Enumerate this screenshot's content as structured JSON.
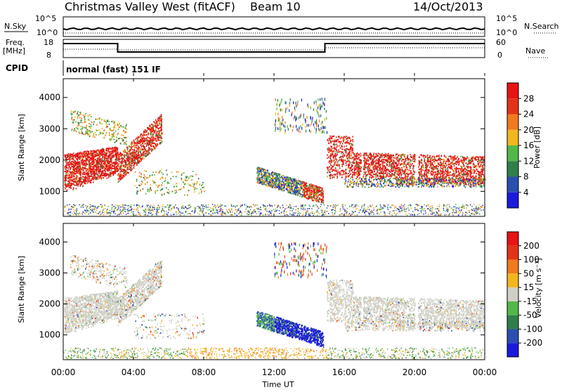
{
  "header": {
    "station": "Christmas Valley West (fitACF)",
    "beam": "Beam 10",
    "date": "14/Oct/2013"
  },
  "status_panel": {
    "nsky_label": "N.Sky",
    "nsearch_label": "N.Search",
    "nsky_ticks": [
      "10^5",
      "10^0"
    ],
    "nsearch_ticks": [
      "10^5",
      "10^0"
    ],
    "freq_label_line1": "Freq.",
    "freq_label_line2": "[MHz]",
    "freq_ticks": [
      "18",
      "8"
    ],
    "nave_label": "Nave",
    "nave_ticks": [
      "60",
      "0"
    ],
    "cpid_label": "CPID",
    "cpid_text": "normal (fast) 151 IF"
  },
  "chart_data": [
    {
      "type": "heatmap",
      "name": "power",
      "ylabel": "Slant Range [km]",
      "y_ticks": [
        "1000",
        "2000",
        "3000",
        "4000"
      ],
      "ylim": [
        200,
        4600
      ],
      "colorbar": {
        "label": "Power [dB]",
        "ticks": [
          "4",
          "8",
          "12",
          "16",
          "20",
          "24",
          "28"
        ],
        "colors": [
          "#1a1adc",
          "#2a4fb0",
          "#2f7f4a",
          "#52b848",
          "#f2b71f",
          "#f07a1e",
          "#e23317",
          "#e61414"
        ]
      }
    },
    {
      "type": "heatmap",
      "name": "velocity",
      "ylabel": "Slant Range [km]",
      "y_ticks": [
        "1000",
        "2000",
        "3000",
        "4000"
      ],
      "ylim": [
        200,
        4600
      ],
      "colorbar": {
        "label": "Velocity [m s⁻¹]",
        "ticks": [
          "200",
          "100",
          "50",
          "15",
          "-15",
          "-50",
          "-100",
          "-200"
        ],
        "colors": [
          "#1a1adc",
          "#2a4fb0",
          "#2f7f4a",
          "#52b848",
          "#cfcfc6",
          "#f2b71f",
          "#f07a1e",
          "#e23317",
          "#e61414"
        ]
      }
    }
  ],
  "x_axis": {
    "label": "Time UT",
    "ticks": [
      "00:00",
      "04:00",
      "08:00",
      "12:00",
      "16:00",
      "20:00",
      "00:00"
    ]
  }
}
